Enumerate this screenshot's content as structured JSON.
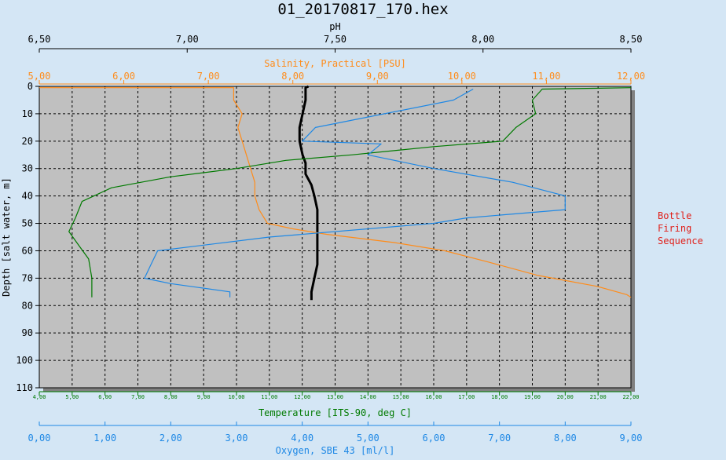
{
  "chart_data": {
    "type": "line",
    "title": "01_20170817_170.hex",
    "legend_label": "Bottle Firing Sequence",
    "legend_lines": [
      "Bottle",
      "Firing",
      "Sequence"
    ],
    "grid": true,
    "background_color": "#d4e6f5",
    "plot_background": "#c0c0c0",
    "y_axis": {
      "label": "Depth [salt water, m]",
      "range": [
        0,
        110
      ],
      "ticks": [
        "0",
        "10",
        "20",
        "30",
        "40",
        "50",
        "60",
        "70",
        "80",
        "90",
        "100",
        "110"
      ],
      "inverted": true
    },
    "x_axes": [
      {
        "id": "ph",
        "label": "pH",
        "position": "top-outer",
        "range": [
          6.5,
          8.5
        ],
        "ticks": [
          "6,50",
          "7,00",
          "7,50",
          "8,00",
          "8,50"
        ],
        "color": "#000000"
      },
      {
        "id": "salinity",
        "label": "Salinity, Practical [PSU]",
        "position": "top-inner",
        "range": [
          5,
          12
        ],
        "ticks": [
          "5,00",
          "6,00",
          "7,00",
          "8,00",
          "9,00",
          "10,00",
          "11,00",
          "12,00"
        ],
        "color": "#ff8c1a"
      },
      {
        "id": "temperature",
        "label": "Temperature [ITS-90, deg C]",
        "position": "bottom-inner",
        "range": [
          4,
          22
        ],
        "ticks": [
          "4,00",
          "5,00",
          "6,00",
          "7,00",
          "8,00",
          "9,00",
          "10,00",
          "11,00",
          "12,00",
          "13,00",
          "14,00",
          "15,00",
          "16,00",
          "17,00",
          "18,00",
          "19,00",
          "20,00",
          "21,00",
          "22,00"
        ],
        "color": "#007a00"
      },
      {
        "id": "oxygen",
        "label": "Oxygen, SBE 43 [ml/l]",
        "position": "bottom-outer",
        "range": [
          0,
          9
        ],
        "ticks": [
          "0,00",
          "1,00",
          "2,00",
          "3,00",
          "4,00",
          "5,00",
          "6,00",
          "7,00",
          "8,00",
          "9,00"
        ],
        "color": "#1e88e5"
      }
    ],
    "series": [
      {
        "axis": "ph",
        "color": "#000000",
        "points": [
          [
            7.41,
            0
          ],
          [
            7.4,
            0.5
          ],
          [
            7.4,
            5
          ],
          [
            7.39,
            10
          ],
          [
            7.38,
            15
          ],
          [
            7.38,
            20
          ],
          [
            7.39,
            25
          ],
          [
            7.4,
            28
          ],
          [
            7.4,
            32
          ],
          [
            7.42,
            36
          ],
          [
            7.43,
            40
          ],
          [
            7.44,
            45
          ],
          [
            7.44,
            50
          ],
          [
            7.44,
            55
          ],
          [
            7.44,
            60
          ],
          [
            7.44,
            65
          ],
          [
            7.43,
            70
          ],
          [
            7.42,
            75
          ],
          [
            7.42,
            78
          ]
        ]
      },
      {
        "axis": "salinity",
        "color": "#ff8c1a",
        "points": [
          [
            5.0,
            0.5
          ],
          [
            7.3,
            0.5
          ],
          [
            7.3,
            5
          ],
          [
            7.4,
            10
          ],
          [
            7.35,
            15
          ],
          [
            7.4,
            20
          ],
          [
            7.45,
            25
          ],
          [
            7.5,
            30
          ],
          [
            7.55,
            35
          ],
          [
            7.55,
            40
          ],
          [
            7.6,
            45
          ],
          [
            7.7,
            50
          ],
          [
            8.0,
            52
          ],
          [
            8.4,
            54
          ],
          [
            9.2,
            57
          ],
          [
            9.8,
            60
          ],
          [
            10.3,
            64
          ],
          [
            10.9,
            69
          ],
          [
            11.6,
            73
          ],
          [
            11.95,
            76
          ],
          [
            12.0,
            77
          ]
        ]
      },
      {
        "axis": "temperature",
        "color": "#007a00",
        "points": [
          [
            22.0,
            0.5
          ],
          [
            19.3,
            1
          ],
          [
            19.0,
            5
          ],
          [
            19.1,
            10
          ],
          [
            18.5,
            15
          ],
          [
            18.1,
            20
          ],
          [
            16.0,
            22
          ],
          [
            13.5,
            25
          ],
          [
            11.5,
            27
          ],
          [
            10.0,
            30
          ],
          [
            8.0,
            33
          ],
          [
            6.2,
            37
          ],
          [
            5.3,
            42
          ],
          [
            5.1,
            48
          ],
          [
            4.9,
            53
          ],
          [
            5.2,
            58
          ],
          [
            5.5,
            63
          ],
          [
            5.6,
            70
          ],
          [
            5.6,
            77
          ]
        ]
      },
      {
        "axis": "oxygen",
        "color": "#1e88e5",
        "points": [
          [
            6.6,
            1
          ],
          [
            6.3,
            5
          ],
          [
            4.2,
            15
          ],
          [
            4.0,
            20
          ],
          [
            5.2,
            21
          ],
          [
            5.0,
            25
          ],
          [
            6.0,
            30
          ],
          [
            7.2,
            35
          ],
          [
            8.0,
            40
          ],
          [
            8.0,
            45
          ],
          [
            6.5,
            48
          ],
          [
            6.0,
            50
          ],
          [
            3.5,
            55
          ],
          [
            1.8,
            60
          ],
          [
            1.7,
            65
          ],
          [
            1.6,
            70
          ],
          [
            2.0,
            72
          ],
          [
            2.9,
            75
          ],
          [
            2.9,
            77
          ]
        ]
      }
    ]
  }
}
